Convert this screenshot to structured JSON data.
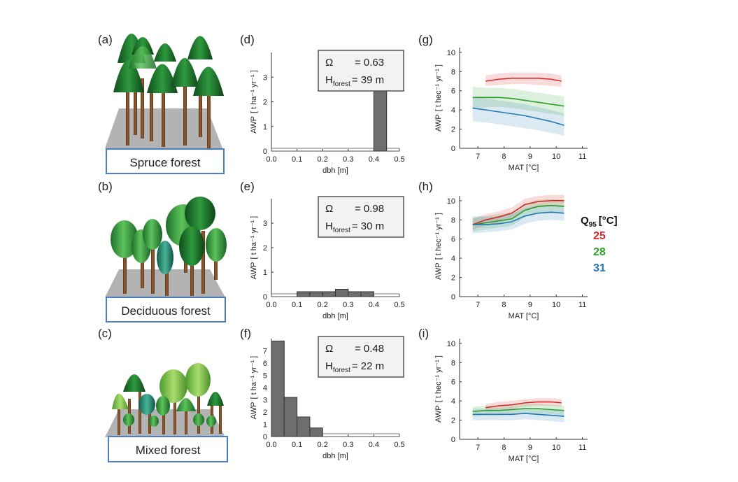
{
  "figure": {
    "forest_labels": [
      "Spruce forest",
      "Deciduous forest",
      "Mixed forest"
    ],
    "panel_letters": [
      "(a)",
      "(b)",
      "(c)",
      "(d)",
      "(e)",
      "(f)",
      "(g)",
      "(h)",
      "(i)"
    ],
    "legend": {
      "title_main": "Q",
      "title_sub": "95",
      "title_unit": "[°C]",
      "items": [
        {
          "label": "25",
          "color": "#d62728"
        },
        {
          "label": "28",
          "color": "#2ca02c"
        },
        {
          "label": "31",
          "color": "#1f77b4"
        }
      ]
    }
  },
  "chart_data": [
    {
      "type": "bar",
      "panel": "(d)",
      "xlabel": "dbh [m]",
      "ylabel_main": "AWP",
      "ylabel_unit": "[ t ha⁻¹ yr⁻¹ ]",
      "xticks": [
        "0.0",
        "0.1",
        "0.2",
        "0.3",
        "0.4",
        "0.5"
      ],
      "yticks": [
        "0",
        "1",
        "2",
        "3"
      ],
      "xlim": [
        0,
        0.5
      ],
      "ylim": [
        0,
        4
      ],
      "bins": [
        [
          0.0,
          0.05
        ],
        [
          0.05,
          0.1
        ],
        [
          0.1,
          0.15
        ],
        [
          0.15,
          0.2
        ],
        [
          0.2,
          0.25
        ],
        [
          0.25,
          0.3
        ],
        [
          0.3,
          0.35
        ],
        [
          0.35,
          0.4
        ],
        [
          0.4,
          0.45
        ],
        [
          0.45,
          0.5
        ]
      ],
      "values": [
        0,
        0,
        0,
        0,
        0,
        0,
        0,
        0,
        3.3,
        0
      ],
      "info": {
        "omega_label": "Ω",
        "omega_value": "= 0.63",
        "h_label": "H",
        "h_sub": "forest",
        "h_value": "= 39  m"
      }
    },
    {
      "type": "bar",
      "panel": "(e)",
      "xlabel": "dbh [m]",
      "ylabel_main": "AWP",
      "ylabel_unit": "[ t ha⁻¹ yr⁻¹ ]",
      "xticks": [
        "0.0",
        "0.1",
        "0.2",
        "0.3",
        "0.4",
        "0.5"
      ],
      "yticks": [
        "0",
        "1",
        "2",
        "3"
      ],
      "xlim": [
        0,
        0.5
      ],
      "ylim": [
        0,
        4
      ],
      "bins": [
        [
          0.0,
          0.05
        ],
        [
          0.05,
          0.1
        ],
        [
          0.1,
          0.15
        ],
        [
          0.15,
          0.2
        ],
        [
          0.2,
          0.25
        ],
        [
          0.25,
          0.3
        ],
        [
          0.3,
          0.35
        ],
        [
          0.35,
          0.4
        ],
        [
          0.4,
          0.45
        ],
        [
          0.45,
          0.5
        ]
      ],
      "values": [
        0,
        0,
        0.2,
        0.2,
        0.2,
        0.3,
        0.2,
        0.2,
        0,
        0
      ],
      "info": {
        "omega_label": "Ω",
        "omega_value": "= 0.98",
        "h_label": "H",
        "h_sub": "forest",
        "h_value": "= 30  m"
      }
    },
    {
      "type": "bar",
      "panel": "(f)",
      "xlabel": "dbh [m]",
      "ylabel_main": "AWP",
      "ylabel_unit": "[ t ha⁻¹ yr⁻¹ ]",
      "xticks": [
        "0.0",
        "0.1",
        "0.2",
        "0.3",
        "0.4",
        "0.5"
      ],
      "yticks": [
        "0",
        "1",
        "2",
        "3",
        "4",
        "5",
        "6",
        "7"
      ],
      "xlim": [
        0,
        0.5
      ],
      "ylim": [
        0,
        8
      ],
      "bins": [
        [
          0.0,
          0.05
        ],
        [
          0.05,
          0.1
        ],
        [
          0.1,
          0.15
        ],
        [
          0.15,
          0.2
        ],
        [
          0.2,
          0.25
        ],
        [
          0.25,
          0.3
        ],
        [
          0.3,
          0.35
        ],
        [
          0.35,
          0.4
        ],
        [
          0.4,
          0.45
        ],
        [
          0.45,
          0.5
        ]
      ],
      "values": [
        7.8,
        3.2,
        1.6,
        0.7,
        0,
        0,
        0,
        0,
        0,
        0
      ],
      "info": {
        "omega_label": "Ω",
        "omega_value": "= 0.48",
        "h_label": "H",
        "h_sub": "forest",
        "h_value": "= 22  m"
      }
    },
    {
      "type": "line",
      "panel": "(g)",
      "xlabel": "MAT [°C]",
      "ylabel_main": "AWP",
      "ylabel_unit": "[ t hec⁻¹ yr⁻¹ ]",
      "xticks": [
        "7",
        "8",
        "9",
        "10",
        "11"
      ],
      "yticks": [
        "0",
        "2",
        "4",
        "6",
        "8",
        "10"
      ],
      "xlim": [
        6.3,
        11.2
      ],
      "ylim": [
        0,
        10.5
      ],
      "series": [
        {
          "color": "#d62728",
          "x": [
            7.3,
            7.8,
            8.3,
            8.8,
            9.3,
            9.8,
            10.2
          ],
          "y": [
            7.0,
            7.2,
            7.3,
            7.3,
            7.3,
            7.2,
            7.0
          ],
          "lo": [
            6.5,
            6.6,
            6.7,
            6.7,
            6.6,
            6.5,
            6.4
          ],
          "hi": [
            7.6,
            7.8,
            7.9,
            7.9,
            7.9,
            7.8,
            7.6
          ]
        },
        {
          "color": "#2ca02c",
          "x": [
            6.8,
            7.3,
            7.8,
            8.3,
            8.8,
            9.3,
            9.8,
            10.3
          ],
          "y": [
            5.3,
            5.3,
            5.3,
            5.2,
            5.0,
            4.8,
            4.6,
            4.4
          ],
          "lo": [
            4.2,
            4.3,
            4.3,
            4.2,
            4.0,
            3.8,
            3.6,
            3.4
          ],
          "hi": [
            6.4,
            6.3,
            6.3,
            6.2,
            6.0,
            5.8,
            5.6,
            5.4
          ]
        },
        {
          "color": "#1f77b4",
          "x": [
            6.8,
            7.3,
            7.8,
            8.3,
            8.8,
            9.3,
            9.8,
            10.3
          ],
          "y": [
            4.2,
            4.0,
            3.8,
            3.6,
            3.4,
            3.1,
            2.8,
            2.4
          ],
          "lo": [
            2.8,
            2.7,
            2.5,
            2.3,
            2.1,
            1.9,
            1.6,
            1.3
          ],
          "hi": [
            5.4,
            5.2,
            5.0,
            4.8,
            4.6,
            4.3,
            4.0,
            3.6
          ]
        }
      ]
    },
    {
      "type": "line",
      "panel": "(h)",
      "xlabel": "MAT [°C]",
      "ylabel_main": "AWP",
      "ylabel_unit": "[ t hec⁻¹ yr⁻¹ ]",
      "xticks": [
        "7",
        "8",
        "9",
        "10",
        "11"
      ],
      "yticks": [
        "0",
        "2",
        "4",
        "6",
        "8",
        "10"
      ],
      "xlim": [
        6.3,
        11.2
      ],
      "ylim": [
        0,
        10.5
      ],
      "series": [
        {
          "color": "#d62728",
          "x": [
            6.8,
            7.3,
            7.8,
            8.3,
            8.8,
            9.3,
            9.8,
            10.3
          ],
          "y": [
            7.5,
            8.0,
            8.3,
            8.7,
            9.6,
            9.9,
            10.0,
            10.0
          ],
          "lo": [
            7.0,
            7.4,
            7.7,
            8.1,
            9.0,
            9.3,
            9.4,
            9.4
          ],
          "hi": [
            8.1,
            8.6,
            8.9,
            9.3,
            10.2,
            10.5,
            10.6,
            10.6
          ]
        },
        {
          "color": "#2ca02c",
          "x": [
            6.8,
            7.3,
            7.8,
            8.3,
            8.8,
            9.3,
            9.8,
            10.3
          ],
          "y": [
            7.5,
            7.7,
            7.9,
            8.1,
            9.0,
            9.4,
            9.5,
            9.4
          ],
          "lo": [
            6.8,
            7.0,
            7.2,
            7.4,
            8.3,
            8.7,
            8.8,
            8.7
          ],
          "hi": [
            8.2,
            8.4,
            8.6,
            8.8,
            9.7,
            10.1,
            10.2,
            10.1
          ]
        },
        {
          "color": "#1f77b4",
          "x": [
            6.8,
            7.3,
            7.8,
            8.3,
            8.8,
            9.3,
            9.8,
            10.3
          ],
          "y": [
            7.5,
            7.5,
            7.6,
            7.8,
            8.4,
            8.7,
            8.8,
            8.7
          ],
          "lo": [
            6.6,
            6.7,
            6.8,
            7.0,
            7.6,
            7.9,
            8.0,
            7.9
          ],
          "hi": [
            8.4,
            8.3,
            8.4,
            8.6,
            9.2,
            9.5,
            9.6,
            9.5
          ]
        }
      ]
    },
    {
      "type": "line",
      "panel": "(i)",
      "xlabel": "MAT [°C]",
      "ylabel_main": "AWP",
      "ylabel_unit": "[ t hec⁻¹ yr⁻¹ ]",
      "xticks": [
        "7",
        "8",
        "9",
        "10",
        "11"
      ],
      "yticks": [
        "0",
        "2",
        "4",
        "6",
        "8",
        "10"
      ],
      "xlim": [
        6.3,
        11.2
      ],
      "ylim": [
        0,
        10.5
      ],
      "series": [
        {
          "color": "#d62728",
          "x": [
            7.3,
            7.8,
            8.3,
            8.8,
            9.3,
            9.8,
            10.2
          ],
          "y": [
            3.3,
            3.5,
            3.6,
            3.8,
            3.9,
            3.9,
            3.8
          ],
          "lo": [
            3.0,
            3.1,
            3.2,
            3.4,
            3.5,
            3.5,
            3.4
          ],
          "hi": [
            3.7,
            3.9,
            4.0,
            4.2,
            4.3,
            4.3,
            4.2
          ]
        },
        {
          "color": "#2ca02c",
          "x": [
            6.8,
            7.3,
            7.8,
            8.3,
            8.8,
            9.3,
            9.8,
            10.3
          ],
          "y": [
            2.9,
            3.0,
            3.0,
            3.1,
            3.2,
            3.2,
            3.1,
            3.0
          ],
          "lo": [
            2.4,
            2.5,
            2.5,
            2.6,
            2.7,
            2.7,
            2.6,
            2.5
          ],
          "hi": [
            3.4,
            3.5,
            3.5,
            3.6,
            3.7,
            3.7,
            3.6,
            3.5
          ]
        },
        {
          "color": "#1f77b4",
          "x": [
            6.8,
            7.3,
            7.8,
            8.3,
            8.8,
            9.3,
            9.8,
            10.3
          ],
          "y": [
            2.6,
            2.6,
            2.6,
            2.6,
            2.7,
            2.6,
            2.5,
            2.4
          ],
          "lo": [
            2.0,
            2.0,
            2.0,
            2.0,
            2.1,
            2.0,
            1.9,
            1.8
          ],
          "hi": [
            3.2,
            3.2,
            3.2,
            3.2,
            3.3,
            3.2,
            3.1,
            3.0
          ]
        }
      ]
    }
  ]
}
